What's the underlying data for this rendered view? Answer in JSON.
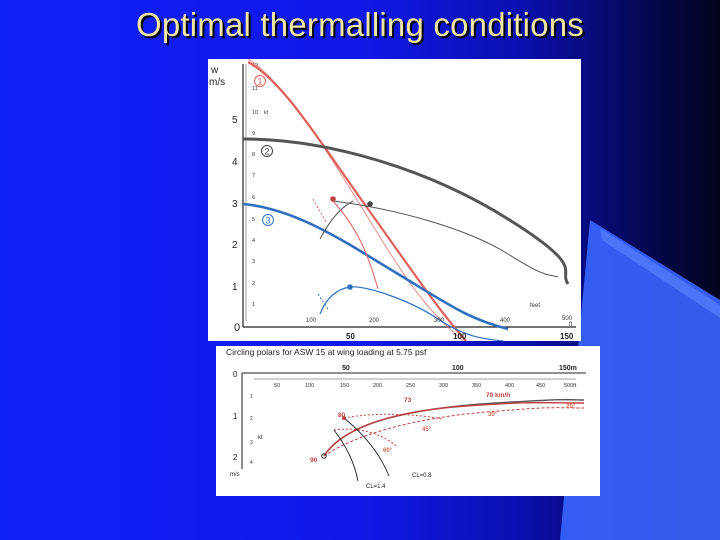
{
  "slide": {
    "title": "Optimal thermalling conditions"
  },
  "colors": {
    "background_left": "#1020f8",
    "background_right": "#02031c",
    "title_text": "#f0e6a6",
    "accent_shape": "#3a66ff",
    "curve_red": "#e0605a",
    "curve_gray": "#555555",
    "curve_blue": "#2f6fc0"
  },
  "figure_top": {
    "ylabel_unit_1": "w",
    "ylabel_unit_2": "m/s",
    "y_ticks_ms": [
      "5",
      "4",
      "3",
      "2",
      "1",
      "0"
    ],
    "y_ticks_kt": [
      "12",
      "11",
      "10",
      "9",
      "8",
      "7",
      "6",
      "5",
      "4",
      "3",
      "2",
      "1"
    ],
    "kt_label": "kt",
    "x_ticks_m": [
      "50",
      "100",
      "150"
    ],
    "x_ticks_ft": [
      "100",
      "200",
      "300",
      "400",
      "500"
    ],
    "x_ft_unit": "ft",
    "feet_label": "feet",
    "curve_labels": [
      "1",
      "2",
      "3"
    ]
  },
  "figure_bottom": {
    "caption": "Circling polars for ASW 15 at wing loading at 5.75 psf",
    "x_ticks_m": [
      "50",
      "100",
      "150m"
    ],
    "x_ticks_ft": [
      "50",
      "100",
      "150",
      "200",
      "250",
      "300",
      "350",
      "400",
      "450",
      "500ft"
    ],
    "y_ticks_ms": [
      "0",
      "1",
      "2"
    ],
    "y_ticks_kt": [
      "1",
      "2",
      "3",
      "4"
    ],
    "kt_label": "kt",
    "y_unit": "m/s",
    "speed_labels": [
      "70 km/h",
      "73",
      "80",
      "90"
    ],
    "bank_labels": [
      "20°",
      "30°",
      "45°",
      "60°"
    ],
    "cl_labels": [
      "CL=1.4",
      "CL=0.8"
    ]
  }
}
